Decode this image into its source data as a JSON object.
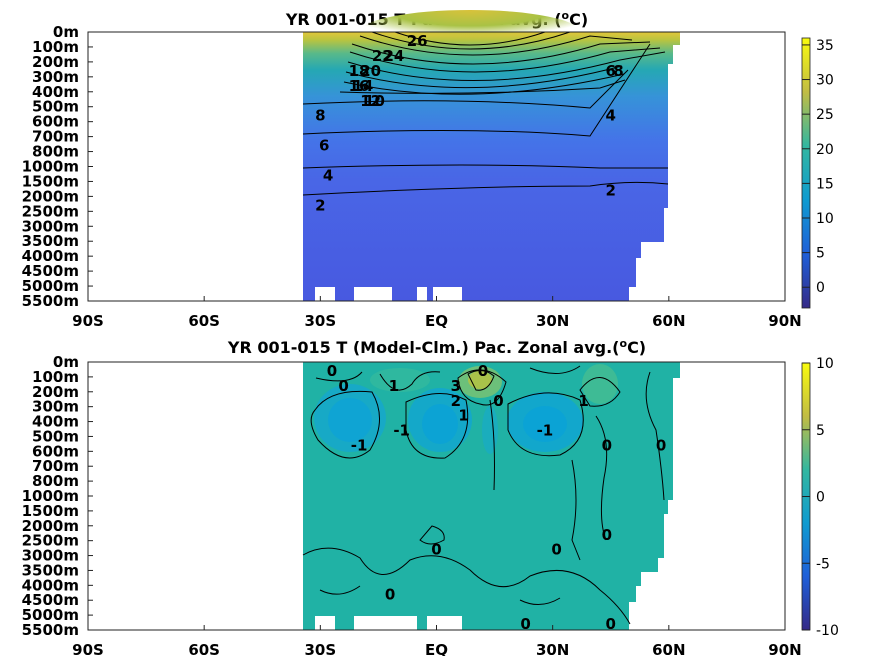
{
  "chart_data": [
    {
      "type": "heatmap",
      "title_main": "YR 001-015 T Pac. Zonal avg. (",
      "title_sup": "o",
      "title_end": "C)",
      "xlabel": "",
      "ylabel": "",
      "x_ticks": [
        "90S",
        "60S",
        "30S",
        "EQ",
        "30N",
        "60N",
        "90N"
      ],
      "x_range": [
        -90,
        90
      ],
      "y_ticks": [
        "0m",
        "100m",
        "200m",
        "300m",
        "400m",
        "500m",
        "600m",
        "700m",
        "800m",
        "1000m",
        "1500m",
        "2000m",
        "2500m",
        "3000m",
        "3500m",
        "4000m",
        "4500m",
        "5000m",
        "5500m"
      ],
      "colorbar": {
        "ticks": [
          35,
          30,
          25,
          20,
          15,
          10,
          5,
          0
        ],
        "range": [
          -3,
          36
        ]
      },
      "data_lat_extent": [
        -34,
        62
      ],
      "contour_labels": [
        {
          "text": "26",
          "lat": -5,
          "depth": "0m"
        },
        {
          "text": "24",
          "lat": -11,
          "depth": "100m"
        },
        {
          "text": "22",
          "lat": -14,
          "depth": "100m"
        },
        {
          "text": "20",
          "lat": -17,
          "depth": "200m"
        },
        {
          "text": "18",
          "lat": -20,
          "depth": "200m"
        },
        {
          "text": "16",
          "lat": -20,
          "depth": "300m"
        },
        {
          "text": "14",
          "lat": -19,
          "depth": "300m"
        },
        {
          "text": "12",
          "lat": -17,
          "depth": "400m"
        },
        {
          "text": "10",
          "lat": -16,
          "depth": "400m"
        },
        {
          "text": "8",
          "lat": -30,
          "depth": "500m"
        },
        {
          "text": "6",
          "lat": -29,
          "depth": "700m"
        },
        {
          "text": "4",
          "lat": -28,
          "depth": "1000m"
        },
        {
          "text": "2",
          "lat": -30,
          "depth": "2000m"
        },
        {
          "text": "2",
          "lat": 45,
          "depth": "1500m"
        },
        {
          "text": "4",
          "lat": 45,
          "depth": "500m"
        },
        {
          "text": "6",
          "lat": 45,
          "depth": "200m"
        },
        {
          "text": "8",
          "lat": 47,
          "depth": "200m"
        }
      ]
    },
    {
      "type": "heatmap",
      "title_main": "YR 001-015 T (Model-Clm.) Pac. Zonal avg.(",
      "title_sup": "o",
      "title_end": "C)",
      "xlabel": "",
      "ylabel": "",
      "x_ticks": [
        "90S",
        "60S",
        "30S",
        "EQ",
        "30N",
        "60N",
        "90N"
      ],
      "x_range": [
        -90,
        90
      ],
      "y_ticks": [
        "0m",
        "100m",
        "200m",
        "300m",
        "400m",
        "500m",
        "600m",
        "700m",
        "800m",
        "1000m",
        "1500m",
        "2000m",
        "2500m",
        "3000m",
        "3500m",
        "4000m",
        "4500m",
        "5000m",
        "5500m"
      ],
      "colorbar": {
        "ticks": [
          10,
          5,
          0,
          -5,
          -10
        ],
        "range": [
          -10,
          10
        ]
      },
      "data_lat_extent": [
        -34,
        62
      ],
      "contour_labels": [
        {
          "text": "0",
          "lat": 12,
          "depth": "0m"
        },
        {
          "text": "0",
          "lat": -27,
          "depth": "0m"
        },
        {
          "text": "0",
          "lat": -24,
          "depth": "100m"
        },
        {
          "text": "1",
          "lat": -11,
          "depth": "100m"
        },
        {
          "text": "3",
          "lat": 5,
          "depth": "100m"
        },
        {
          "text": "2",
          "lat": 5,
          "depth": "200m"
        },
        {
          "text": "1",
          "lat": 7,
          "depth": "300m"
        },
        {
          "text": "0",
          "lat": 16,
          "depth": "200m"
        },
        {
          "text": "1",
          "lat": 38,
          "depth": "200m"
        },
        {
          "text": "-1",
          "lat": -9,
          "depth": "400m"
        },
        {
          "text": "-1",
          "lat": 28,
          "depth": "400m"
        },
        {
          "text": "-1",
          "lat": -20,
          "depth": "500m"
        },
        {
          "text": "0",
          "lat": 44,
          "depth": "500m"
        },
        {
          "text": "0",
          "lat": 58,
          "depth": "500m"
        },
        {
          "text": "0",
          "lat": 44,
          "depth": "2000m"
        },
        {
          "text": "0",
          "lat": 31,
          "depth": "2500m"
        },
        {
          "text": "0",
          "lat": 0,
          "depth": "2500m"
        },
        {
          "text": "0",
          "lat": -12,
          "depth": "4000m"
        },
        {
          "text": "0",
          "lat": 23,
          "depth": "5000m"
        },
        {
          "text": "0",
          "lat": 45,
          "depth": "5000m"
        }
      ]
    }
  ]
}
